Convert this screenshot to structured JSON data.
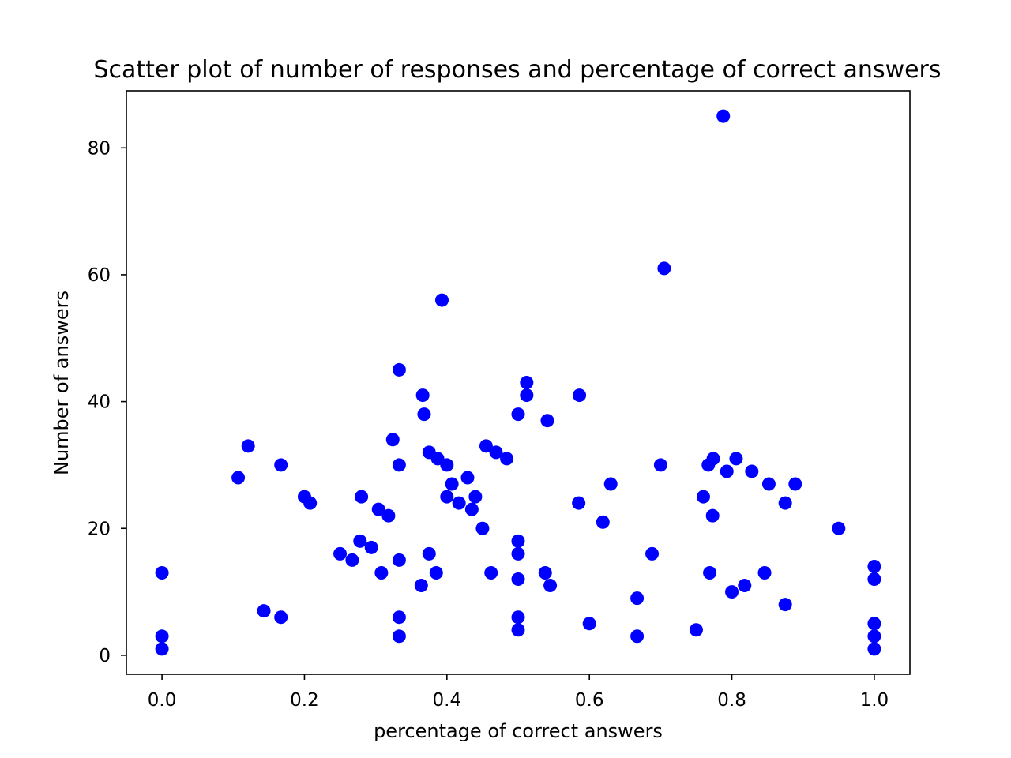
{
  "chart_data": {
    "type": "scatter",
    "title": "Scatter plot of number of responses and percentage of correct answers",
    "xlabel": "percentage of correct answers",
    "ylabel": "Number of answers",
    "xlim": [
      -0.05,
      1.05
    ],
    "ylim": [
      -3,
      89
    ],
    "xticks": [
      0.0,
      0.2,
      0.4,
      0.6,
      0.8,
      1.0
    ],
    "xtick_labels": [
      "0.0",
      "0.2",
      "0.4",
      "0.6",
      "0.8",
      "1.0"
    ],
    "yticks": [
      0,
      20,
      40,
      60,
      80
    ],
    "ytick_labels": [
      "0",
      "20",
      "40",
      "60",
      "80"
    ],
    "grid": false,
    "marker_color": "#0000ff",
    "points": [
      [
        0.0,
        13
      ],
      [
        0.0,
        3
      ],
      [
        0.0,
        1
      ],
      [
        0.107,
        28
      ],
      [
        0.121,
        33
      ],
      [
        0.143,
        7
      ],
      [
        0.167,
        30
      ],
      [
        0.167,
        6
      ],
      [
        0.2,
        25
      ],
      [
        0.208,
        24
      ],
      [
        0.25,
        16
      ],
      [
        0.267,
        15
      ],
      [
        0.278,
        18
      ],
      [
        0.28,
        25
      ],
      [
        0.294,
        17
      ],
      [
        0.304,
        23
      ],
      [
        0.308,
        13
      ],
      [
        0.318,
        22
      ],
      [
        0.324,
        34
      ],
      [
        0.333,
        45
      ],
      [
        0.333,
        30
      ],
      [
        0.333,
        15
      ],
      [
        0.333,
        6
      ],
      [
        0.333,
        3
      ],
      [
        0.364,
        11
      ],
      [
        0.366,
        41
      ],
      [
        0.368,
        38
      ],
      [
        0.375,
        32
      ],
      [
        0.375,
        16
      ],
      [
        0.385,
        13
      ],
      [
        0.387,
        31
      ],
      [
        0.393,
        56
      ],
      [
        0.4,
        30
      ],
      [
        0.4,
        25
      ],
      [
        0.407,
        27
      ],
      [
        0.417,
        24
      ],
      [
        0.429,
        28
      ],
      [
        0.435,
        23
      ],
      [
        0.44,
        25
      ],
      [
        0.45,
        20
      ],
      [
        0.455,
        33
      ],
      [
        0.462,
        13
      ],
      [
        0.469,
        32
      ],
      [
        0.484,
        31
      ],
      [
        0.5,
        38
      ],
      [
        0.5,
        18
      ],
      [
        0.5,
        16
      ],
      [
        0.5,
        12
      ],
      [
        0.5,
        6
      ],
      [
        0.5,
        4
      ],
      [
        0.512,
        43
      ],
      [
        0.512,
        41
      ],
      [
        0.538,
        13
      ],
      [
        0.541,
        37
      ],
      [
        0.545,
        11
      ],
      [
        0.585,
        24
      ],
      [
        0.586,
        41
      ],
      [
        0.6,
        5
      ],
      [
        0.619,
        21
      ],
      [
        0.63,
        27
      ],
      [
        0.667,
        9
      ],
      [
        0.667,
        3
      ],
      [
        0.688,
        16
      ],
      [
        0.7,
        30
      ],
      [
        0.705,
        61
      ],
      [
        0.75,
        4
      ],
      [
        0.76,
        25
      ],
      [
        0.767,
        30
      ],
      [
        0.769,
        13
      ],
      [
        0.773,
        22
      ],
      [
        0.774,
        31
      ],
      [
        0.788,
        85
      ],
      [
        0.793,
        29
      ],
      [
        0.8,
        10
      ],
      [
        0.806,
        31
      ],
      [
        0.818,
        11
      ],
      [
        0.828,
        29
      ],
      [
        0.846,
        13
      ],
      [
        0.852,
        27
      ],
      [
        0.875,
        24
      ],
      [
        0.875,
        8
      ],
      [
        0.889,
        27
      ],
      [
        0.95,
        20
      ],
      [
        1.0,
        14
      ],
      [
        1.0,
        12
      ],
      [
        1.0,
        5
      ],
      [
        1.0,
        3
      ],
      [
        1.0,
        1
      ]
    ]
  }
}
